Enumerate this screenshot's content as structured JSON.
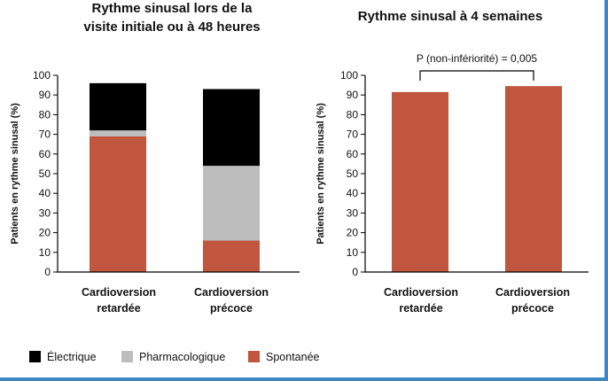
{
  "chart_data": [
    {
      "type": "bar",
      "stacked": true,
      "title_lines": [
        "Rythme sinusal lors de la",
        "visite initiale ou à 48 heures"
      ],
      "ylabel": "Patients en rythme sinusal (%)",
      "ylim": [
        0,
        100
      ],
      "yticks": [
        "0",
        "10",
        "20",
        "30",
        "40",
        "50",
        "60",
        "70",
        "80",
        "90",
        "100"
      ],
      "categories": [
        [
          "Cardioversion",
          "retardée"
        ],
        [
          "Cardioversion",
          "précoce"
        ]
      ],
      "series": [
        {
          "name": "Spontanée",
          "color": "#c0563e",
          "values": [
            69,
            16
          ]
        },
        {
          "name": "Pharmacologique",
          "color": "#bdbdbd",
          "values": [
            3,
            38
          ]
        },
        {
          "name": "Électrique",
          "color": "#000000",
          "values": [
            24,
            39
          ]
        }
      ]
    },
    {
      "type": "bar",
      "title_lines": [
        "Rythme sinusal à 4 semaines"
      ],
      "ylabel": "Patients en rythme sinusal (%)",
      "ylim": [
        0,
        100
      ],
      "yticks": [
        "0",
        "10",
        "20",
        "30",
        "40",
        "50",
        "60",
        "70",
        "80",
        "90",
        "100"
      ],
      "categories": [
        [
          "Cardioversion",
          "retardée"
        ],
        [
          "Cardioversion",
          "précoce"
        ]
      ],
      "series": [
        {
          "color": "#c0563e",
          "values": [
            91.5,
            94.5
          ]
        }
      ],
      "annotation": "P (non-infériorité) = 0,005"
    }
  ],
  "legend": [
    {
      "label": "Électrique",
      "color": "#000000"
    },
    {
      "label": "Pharmacologique",
      "color": "#bdbdbd"
    },
    {
      "label": "Spontanée",
      "color": "#c0563e"
    }
  ],
  "colors": {
    "frame": "#3f86c4",
    "axis": "#000000"
  }
}
